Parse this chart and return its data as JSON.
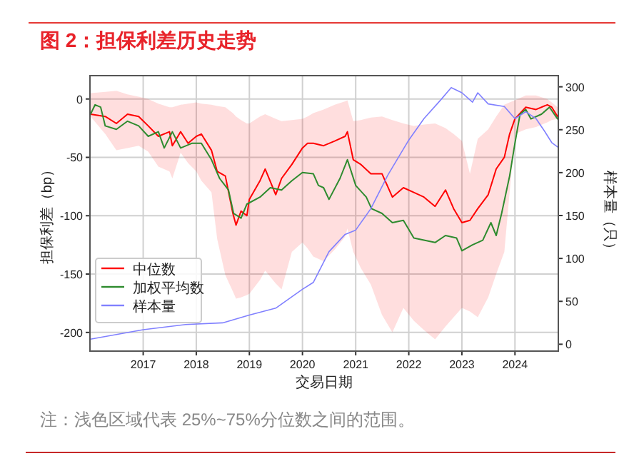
{
  "chart_data": {
    "type": "line",
    "title": "图 2：担保利差历史走势",
    "xlabel": "交易日期",
    "ylabel": "担保利差（bp）",
    "y2label": "样本量（只）",
    "annotations": [
      "注：浅色区域代表 25%~75%分位数之间的范围。"
    ],
    "xlim": [
      "2016-01-01",
      "2024-10-25"
    ],
    "xticks": [
      "2017",
      "2018",
      "2019",
      "2020",
      "2021",
      "2022",
      "2023",
      "2024"
    ],
    "ylim": [
      -216,
      20
    ],
    "yticks": [
      -200,
      -150,
      -100,
      -50,
      0
    ],
    "y2lim": [
      -8,
      313
    ],
    "y2ticks": [
      0,
      50,
      100,
      150,
      200,
      250,
      300
    ],
    "grid": true,
    "legend": "bottom left",
    "series": [
      {
        "name": "中位数",
        "color": "#ff0000",
        "x": [
          "2016-01-05",
          "2016-04-15",
          "2016-07-01",
          "2016-09-15",
          "2016-12-01",
          "2017-02-05",
          "2017-04-15",
          "2017-07-01",
          "2017-07-20",
          "2017-09-15",
          "2017-11-05",
          "2018-01-01",
          "2018-02-05",
          "2018-04-15",
          "2018-05-25",
          "2018-07-20",
          "2018-09-10",
          "2018-10-01",
          "2018-11-05",
          "2018-12-15",
          "2019-01-01",
          "2019-03-15",
          "2019-04-20",
          "2019-07-01",
          "2019-08-10",
          "2019-10-20",
          "2020-01-01",
          "2020-02-05",
          "2020-03-15",
          "2020-05-25",
          "2020-08-10",
          "2020-10-20",
          "2020-11-05",
          "2020-12-15",
          "2021-02-05",
          "2021-04-15",
          "2021-07-01",
          "2021-09-10",
          "2021-11-25",
          "2022-02-05",
          "2022-04-15",
          "2022-07-01",
          "2022-09-10",
          "2022-11-05",
          "2023-01-01",
          "2023-02-25",
          "2023-04-20",
          "2023-07-01",
          "2023-08-25",
          "2023-10-20",
          "2023-11-25",
          "2024-01-01",
          "2024-03-15",
          "2024-05-25",
          "2024-08-10",
          "2024-09-10",
          "2024-10-20"
        ],
        "values": [
          -13,
          -15,
          -21,
          -13,
          -15,
          -23,
          -32,
          -28,
          -40,
          -28,
          -38,
          -32,
          -30,
          -44,
          -62,
          -66,
          -98,
          -108,
          -96,
          -100,
          -86,
          -70,
          -60,
          -82,
          -68,
          -56,
          -42,
          -38,
          -38,
          -40,
          -36,
          -32,
          -28,
          -52,
          -56,
          -64,
          -64,
          -84,
          -76,
          -80,
          -84,
          -92,
          -78,
          -94,
          -106,
          -104,
          -94,
          -82,
          -60,
          -50,
          -30,
          -17,
          -7,
          -9,
          -5,
          -7,
          -15
        ],
        "lower": [
          -15,
          -30,
          -44,
          -42,
          -40,
          -45,
          -58,
          -62,
          -68,
          -46,
          -55,
          -62,
          -70,
          -80,
          -120,
          -151,
          -165,
          -171,
          -170,
          -168,
          -167,
          -155,
          -147,
          -158,
          -163,
          -131,
          -123,
          -128,
          -135,
          -139,
          -129,
          -118,
          -111,
          -131,
          -145,
          -159,
          -185,
          -200,
          -179,
          -190,
          -198,
          -206,
          -195,
          -187,
          -179,
          -182,
          -187,
          -170,
          -150,
          -131,
          -80,
          -30,
          -26,
          -24,
          -20,
          -18,
          -17
        ],
        "upper": [
          5,
          6,
          7,
          4,
          2,
          0,
          -4,
          -7,
          -7,
          -5,
          -4,
          -3,
          -4,
          -5,
          -6,
          -7,
          -12,
          -15,
          -18,
          -21,
          -21,
          -15,
          -13,
          -17,
          -19,
          -18,
          -17,
          -15,
          -12,
          -9,
          -5,
          -2,
          -1,
          -19,
          -18,
          -16,
          -15,
          -18,
          -21,
          -23,
          -22,
          -21,
          -25,
          -30,
          -36,
          -64,
          -34,
          -26,
          -15,
          -5,
          -3,
          -1,
          3,
          3,
          0,
          -3,
          -7
        ]
      },
      {
        "name": "加权平均数",
        "color": "#2e8b2e",
        "x": [
          "2016-01-05",
          "2016-02-05",
          "2016-03-15",
          "2016-04-15",
          "2016-07-01",
          "2016-09-15",
          "2016-12-01",
          "2017-02-05",
          "2017-04-15",
          "2017-05-25",
          "2017-07-20",
          "2017-09-15",
          "2017-12-01",
          "2018-02-05",
          "2018-04-15",
          "2018-06-10",
          "2018-08-10",
          "2018-09-15",
          "2018-11-05",
          "2018-12-15",
          "2019-03-15",
          "2019-05-25",
          "2019-08-10",
          "2019-10-20",
          "2020-01-01",
          "2020-03-15",
          "2020-04-20",
          "2020-05-25",
          "2020-07-01",
          "2020-09-15",
          "2020-11-05",
          "2021-01-01",
          "2021-03-15",
          "2021-04-20",
          "2021-07-01",
          "2021-09-10",
          "2021-11-25",
          "2022-02-05",
          "2022-04-15",
          "2022-07-01",
          "2022-09-10",
          "2022-11-25",
          "2023-01-01",
          "2023-03-15",
          "2023-05-25",
          "2023-07-20",
          "2023-08-25",
          "2023-10-01",
          "2023-11-25",
          "2024-01-01",
          "2024-02-05",
          "2024-03-15",
          "2024-04-20",
          "2024-07-01",
          "2024-08-25",
          "2024-10-20"
        ],
        "values": [
          -13,
          -5,
          -7,
          -23,
          -26,
          -19,
          -23,
          -32,
          -28,
          -42,
          -28,
          -42,
          -38,
          -38,
          -52,
          -68,
          -78,
          -98,
          -102,
          -90,
          -84,
          -76,
          -78,
          -70,
          -63,
          -64,
          -74,
          -76,
          -86,
          -68,
          -52,
          -74,
          -84,
          -94,
          -98,
          -106,
          -104,
          -119,
          -121,
          -123,
          -117,
          -119,
          -130,
          -125,
          -121,
          -106,
          -117,
          -98,
          -66,
          -38,
          -13,
          -9,
          -17,
          -13,
          -7,
          -17
        ]
      },
      {
        "name": "样本量",
        "color": "#8080ff",
        "axis": "y2",
        "x": [
          "2016-01-05",
          "2017-01-01",
          "2017-10-20",
          "2018-07-01",
          "2019-01-01",
          "2019-07-01",
          "2020-01-01",
          "2020-03-15",
          "2020-07-01",
          "2020-10-20",
          "2021-01-01",
          "2021-04-15",
          "2021-08-10",
          "2022-01-01",
          "2022-04-15",
          "2022-08-10",
          "2022-10-20",
          "2023-01-01",
          "2023-03-15",
          "2023-04-20",
          "2023-07-01",
          "2023-10-20",
          "2024-01-01",
          "2024-03-15",
          "2024-05-25",
          "2024-07-20",
          "2024-09-10",
          "2024-10-20"
        ],
        "values": [
          6,
          17,
          23,
          25,
          34,
          42,
          64,
          72,
          108,
          128,
          133,
          158,
          197,
          238,
          263,
          285,
          299,
          293,
          282,
          293,
          280,
          277,
          263,
          271,
          263,
          249,
          235,
          230
        ]
      }
    ]
  }
}
